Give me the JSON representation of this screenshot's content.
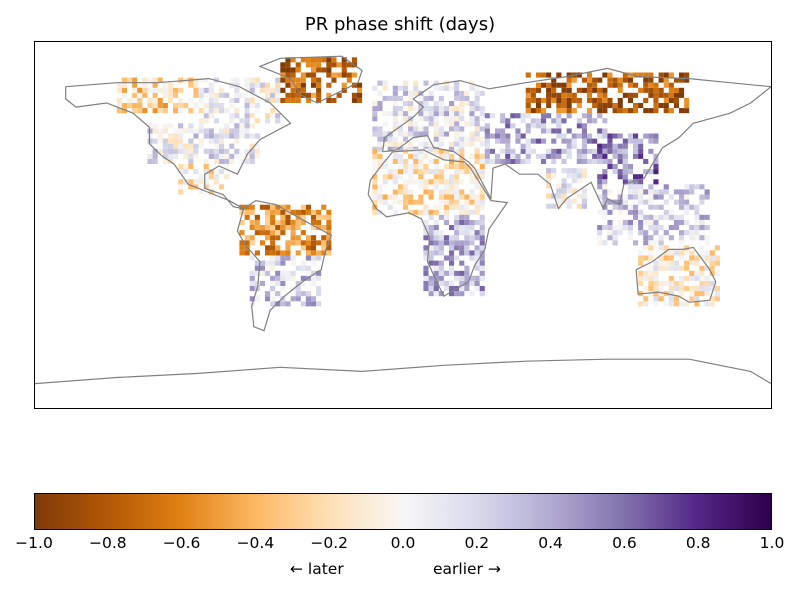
{
  "title": "PR phase shift (days)",
  "colorbar": {
    "colormap": "PuOr",
    "stops": [
      "#7f3b08",
      "#b35806",
      "#e08214",
      "#fdb863",
      "#fee0b6",
      "#f7f7f7",
      "#d8daeb",
      "#b2abd2",
      "#8073ac",
      "#542788",
      "#2d004b"
    ],
    "min": -1.0,
    "max": 1.0,
    "ticks": [
      "−1.0",
      "−0.8",
      "−0.6",
      "−0.4",
      "−0.2",
      "0.0",
      "0.2",
      "0.4",
      "0.6",
      "0.8",
      "1.0"
    ],
    "tick_values": [
      -1.0,
      -0.8,
      -0.6,
      -0.4,
      -0.2,
      0.0,
      0.2,
      0.4,
      0.6,
      0.8,
      1.0
    ],
    "label_left": "←  later",
    "label_right": "earlier  →"
  },
  "map": {
    "projection": "equirectangular",
    "coastline_color": "#808080",
    "lon_range": [
      -180,
      180
    ],
    "lat_range": [
      -90,
      90
    ],
    "regions": [
      {
        "lon": [
          -140,
          -100
        ],
        "lat": [
          55,
          72
        ],
        "value": -0.25
      },
      {
        "lon": [
          -100,
          -60
        ],
        "lat": [
          50,
          72
        ],
        "value": 0.05
      },
      {
        "lon": [
          -125,
          -70
        ],
        "lat": [
          30,
          50
        ],
        "value": 0.1
      },
      {
        "lon": [
          -110,
          -85
        ],
        "lat": [
          15,
          30
        ],
        "value": -0.1
      },
      {
        "lon": [
          -80,
          -35
        ],
        "lat": [
          -15,
          10
        ],
        "value": -0.55
      },
      {
        "lon": [
          -75,
          -40
        ],
        "lat": [
          -40,
          -15
        ],
        "value": 0.25
      },
      {
        "lon": [
          -60,
          -20
        ],
        "lat": [
          60,
          82
        ],
        "value": -0.75
      },
      {
        "lon": [
          -15,
          40
        ],
        "lat": [
          36,
          70
        ],
        "value": 0.15
      },
      {
        "lon": [
          -15,
          40
        ],
        "lat": [
          5,
          36
        ],
        "value": -0.15
      },
      {
        "lon": [
          10,
          40
        ],
        "lat": [
          -35,
          5
        ],
        "value": 0.35
      },
      {
        "lon": [
          40,
          100
        ],
        "lat": [
          30,
          55
        ],
        "value": 0.4
      },
      {
        "lon": [
          60,
          140
        ],
        "lat": [
          55,
          75
        ],
        "value": -0.8
      },
      {
        "lon": [
          95,
          125
        ],
        "lat": [
          20,
          45
        ],
        "value": 0.55
      },
      {
        "lon": [
          70,
          90
        ],
        "lat": [
          8,
          28
        ],
        "value": 0.05
      },
      {
        "lon": [
          95,
          150
        ],
        "lat": [
          -10,
          20
        ],
        "value": 0.25
      },
      {
        "lon": [
          115,
          155
        ],
        "lat": [
          -40,
          -12
        ],
        "value": -0.1
      }
    ]
  }
}
